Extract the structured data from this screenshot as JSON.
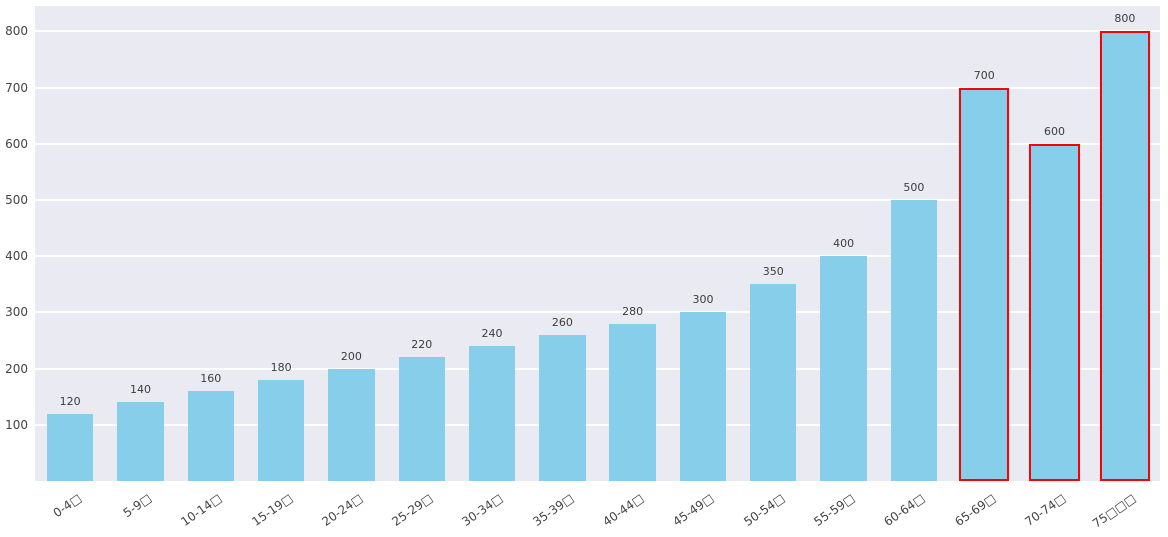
{
  "chart_data": {
    "type": "bar",
    "title": "",
    "xlabel": "",
    "ylabel": "",
    "categories": [
      "0-4□",
      "5-9□",
      "10-14□",
      "15-19□",
      "20-24□",
      "25-29□",
      "30-34□",
      "35-39□",
      "40-44□",
      "45-49□",
      "50-54□",
      "55-59□",
      "60-64□",
      "65-69□",
      "70-74□",
      "75□□□"
    ],
    "values": [
      120,
      140,
      160,
      180,
      200,
      220,
      240,
      260,
      280,
      300,
      350,
      400,
      500,
      700,
      600,
      800
    ],
    "bar_labels": [
      "120",
      "140",
      "160",
      "180",
      "200",
      "220",
      "240",
      "260",
      "280",
      "300",
      "350",
      "400",
      "500",
      "700",
      "600",
      "800"
    ],
    "highlight_indices": [
      13,
      14,
      15
    ],
    "highlighted_categories": [
      "65-69□",
      "70-74□",
      "75□□□"
    ],
    "y_ticks": [
      100,
      200,
      300,
      400,
      500,
      600,
      700,
      800
    ],
    "ylim": [
      0,
      845
    ],
    "grid": true,
    "legend": false,
    "colors": {
      "bar_fill": "#87ceeb",
      "highlight_border": "#ff0000",
      "plot_background": "#eaeaf2",
      "gridline": "#ffffff",
      "tick_label": "#444444",
      "value_label": "#3d3d3d",
      "figure_background": "#ffffff"
    }
  }
}
